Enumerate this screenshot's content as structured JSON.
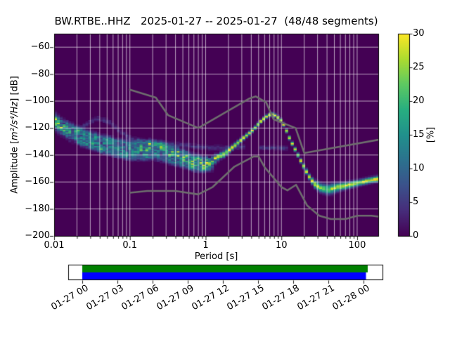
{
  "title": "BW.RTBE..HHZ   2025-01-27 -- 2025-01-27  (48/48 segments)",
  "chart_data": {
    "type": "heatmap",
    "title": "BW.RTBE..HHZ   2025-01-27 -- 2025-01-27  (48/48 segments)",
    "station_id": "BW.RTBE..HHZ",
    "date_range": "2025-01-27 -- 2025-01-27",
    "segments": "48/48",
    "xlabel": "Period [s]",
    "ylabel": "Amplitude [m²/s⁴/Hz] [dB]",
    "ylabel_prefix": "Amplitude [",
    "ylabel_math": "m²/s⁴/Hz",
    "ylabel_suffix": "] [dB]",
    "x_scale": "log",
    "xlim": [
      0.01,
      190
    ],
    "ylim": [
      -200,
      -50
    ],
    "grid": true,
    "grid_color": "#ffffff",
    "background_color": "#440154",
    "x_ticks": [
      {
        "v": 0.01,
        "label": "0.01"
      },
      {
        "v": 0.1,
        "label": "0.1"
      },
      {
        "v": 1,
        "label": "1"
      },
      {
        "v": 10,
        "label": "10"
      },
      {
        "v": 100,
        "label": "100"
      }
    ],
    "y_ticks": [
      {
        "v": -200,
        "label": "−200"
      },
      {
        "v": -180,
        "label": "−180"
      },
      {
        "v": -160,
        "label": "−160"
      },
      {
        "v": -140,
        "label": "−140"
      },
      {
        "v": -120,
        "label": "−120"
      },
      {
        "v": -100,
        "label": "−100"
      },
      {
        "v": -80,
        "label": "−80"
      },
      {
        "v": -60,
        "label": "−60"
      }
    ],
    "db_bin_width": 1,
    "period_bin_octaves": 0.125,
    "mode_curve": [
      [
        0.01,
        -114.5
      ],
      [
        0.012,
        -118
      ],
      [
        0.015,
        -122.5
      ],
      [
        0.02,
        -126
      ],
      [
        0.03,
        -130
      ],
      [
        0.04,
        -132
      ],
      [
        0.05,
        -133.5
      ],
      [
        0.07,
        -135.5
      ],
      [
        0.1,
        -137
      ],
      [
        0.13,
        -136.5
      ],
      [
        0.18,
        -135.5
      ],
      [
        0.25,
        -136.5
      ],
      [
        0.35,
        -139.5
      ],
      [
        0.5,
        -143
      ],
      [
        0.7,
        -146
      ],
      [
        0.9,
        -147
      ],
      [
        1.1,
        -146
      ],
      [
        1.4,
        -142.5
      ],
      [
        1.8,
        -138
      ],
      [
        2.3,
        -133
      ],
      [
        3.0,
        -127.5
      ],
      [
        4.0,
        -121.5
      ],
      [
        5.0,
        -115.5
      ],
      [
        6.0,
        -111.5
      ],
      [
        7.0,
        -109.5
      ],
      [
        8.0,
        -110.5
      ],
      [
        9.0,
        -113
      ],
      [
        10.0,
        -116
      ],
      [
        11.0,
        -121
      ],
      [
        12.0,
        -126.5
      ],
      [
        14.0,
        -134
      ],
      [
        17.0,
        -143.5
      ],
      [
        20.0,
        -151
      ],
      [
        23.0,
        -157.5
      ],
      [
        27.0,
        -162
      ],
      [
        32.0,
        -164.5
      ],
      [
        40.0,
        -165.5
      ],
      [
        55.0,
        -163.5
      ],
      [
        70.0,
        -162.5
      ],
      [
        90.0,
        -161
      ],
      [
        120.0,
        -159.5
      ],
      [
        160.0,
        -158
      ],
      [
        190.0,
        -157.5
      ]
    ],
    "spread_sigma_db": [
      [
        0.01,
        3.2
      ],
      [
        0.05,
        3.2
      ],
      [
        0.1,
        3.0
      ],
      [
        0.3,
        3.0
      ],
      [
        0.7,
        2.6
      ],
      [
        1.2,
        2.0
      ],
      [
        2.0,
        1.2
      ],
      [
        3.0,
        0.9
      ],
      [
        8.0,
        0.8
      ],
      [
        15,
        0.9
      ],
      [
        22,
        1.2
      ],
      [
        30,
        2.0
      ],
      [
        45,
        2.2
      ],
      [
        60,
        1.6
      ],
      [
        100,
        1.3
      ],
      [
        190,
        1.3
      ]
    ],
    "peak_percent": [
      [
        0.01,
        24
      ],
      [
        0.012,
        22
      ],
      [
        0.015,
        16
      ],
      [
        0.03,
        13
      ],
      [
        0.07,
        13
      ],
      [
        0.1,
        14
      ],
      [
        0.15,
        18
      ],
      [
        0.22,
        18
      ],
      [
        0.3,
        17
      ],
      [
        0.45,
        21
      ],
      [
        0.7,
        23
      ],
      [
        1.0,
        24
      ],
      [
        1.5,
        25
      ],
      [
        2.0,
        28
      ],
      [
        3.0,
        30
      ],
      [
        12,
        30
      ],
      [
        20,
        29
      ],
      [
        27,
        27
      ],
      [
        35,
        22
      ],
      [
        45,
        25
      ],
      [
        60,
        28
      ],
      [
        100,
        29
      ],
      [
        190,
        30
      ]
    ],
    "faint_traces": [
      {
        "name": "upper-streak",
        "percent": 8,
        "sigma": 1.5,
        "points": [
          [
            0.013,
            -116
          ],
          [
            0.02,
            -121
          ],
          [
            0.04,
            -127
          ],
          [
            0.07,
            -130
          ],
          [
            0.1,
            -131.5
          ],
          [
            0.16,
            -131
          ],
          [
            0.25,
            -132.5
          ],
          [
            0.4,
            -136
          ],
          [
            0.7,
            -141.5
          ],
          [
            1.0,
            -143
          ]
        ]
      },
      {
        "name": "lower-streak",
        "percent": 7,
        "sigma": 1.5,
        "points": [
          [
            0.02,
            -130.5
          ],
          [
            0.05,
            -138
          ],
          [
            0.1,
            -142
          ],
          [
            0.2,
            -141.5
          ],
          [
            0.3,
            -144
          ],
          [
            0.5,
            -148
          ],
          [
            0.8,
            -151
          ],
          [
            1.2,
            -149.5
          ]
        ]
      },
      {
        "name": "high-arc",
        "percent": 4,
        "sigma": 1.2,
        "points": [
          [
            0.018,
            -124
          ],
          [
            0.025,
            -117.5
          ],
          [
            0.035,
            -112.5
          ],
          [
            0.05,
            -115
          ],
          [
            0.07,
            -122
          ],
          [
            0.1,
            -128
          ],
          [
            0.15,
            -130
          ],
          [
            0.25,
            -131
          ],
          [
            0.5,
            -132.5
          ],
          [
            1.0,
            -134.5
          ],
          [
            2.0,
            -134.5
          ],
          [
            3.2,
            -134
          ]
        ]
      },
      {
        "name": "mid-faint",
        "percent": 4.5,
        "sigma": 1.0,
        "points": [
          [
            5,
            -134.5
          ],
          [
            8,
            -134.5
          ],
          [
            12,
            -135
          ]
        ]
      }
    ],
    "noise_models": {
      "color": "#6e6e6e",
      "nlnm": [
        [
          0.1,
          -168.0
        ],
        [
          0.17,
          -166.7
        ],
        [
          0.4,
          -166.7
        ],
        [
          0.8,
          -169.2
        ],
        [
          1.24,
          -163.7
        ],
        [
          2.4,
          -148.6
        ],
        [
          4.3,
          -141.1
        ],
        [
          5.0,
          -141.1
        ],
        [
          6.0,
          -149.0
        ],
        [
          10.0,
          -163.8
        ],
        [
          12.0,
          -166.2
        ],
        [
          15.6,
          -162.1
        ],
        [
          21.9,
          -177.5
        ],
        [
          31.6,
          -185.0
        ],
        [
          45.0,
          -187.5
        ],
        [
          70.0,
          -187.5
        ],
        [
          101.0,
          -185.0
        ],
        [
          154.0,
          -185.0
        ],
        [
          328.0,
          -187.5
        ]
      ],
      "nhnm": [
        [
          0.1,
          -91.5
        ],
        [
          0.22,
          -97.4
        ],
        [
          0.32,
          -110.5
        ],
        [
          0.8,
          -120.0
        ],
        [
          3.8,
          -98.0
        ],
        [
          4.6,
          -96.5
        ],
        [
          6.3,
          -101.0
        ],
        [
          7.9,
          -113.5
        ],
        [
          15.4,
          -120.0
        ],
        [
          20.0,
          -138.5
        ],
        [
          354.8,
          -126.0
        ]
      ]
    }
  },
  "colorbar": {
    "label": "[%]",
    "vmin": 0,
    "vmax": 30,
    "ticks": [
      {
        "v": 0,
        "label": "0"
      },
      {
        "v": 5,
        "label": "5"
      },
      {
        "v": 10,
        "label": "10"
      },
      {
        "v": 15,
        "label": "15"
      },
      {
        "v": 20,
        "label": "20"
      },
      {
        "v": 25,
        "label": "25"
      },
      {
        "v": 30,
        "label": "30"
      }
    ],
    "viridis_stops": [
      "#440154",
      "#472d7b",
      "#3b528b",
      "#2c728e",
      "#21918c",
      "#28ae80",
      "#5ec962",
      "#addc30",
      "#fde725"
    ]
  },
  "timeline": {
    "labels": [
      "01-27 00",
      "01-27 03",
      "01-27 06",
      "01-27 09",
      "01-27 12",
      "01-27 15",
      "01-27 18",
      "01-27 21",
      "01-28 00"
    ],
    "bar_top_color": "#008000",
    "bar_bottom_color": "#0000ff"
  }
}
